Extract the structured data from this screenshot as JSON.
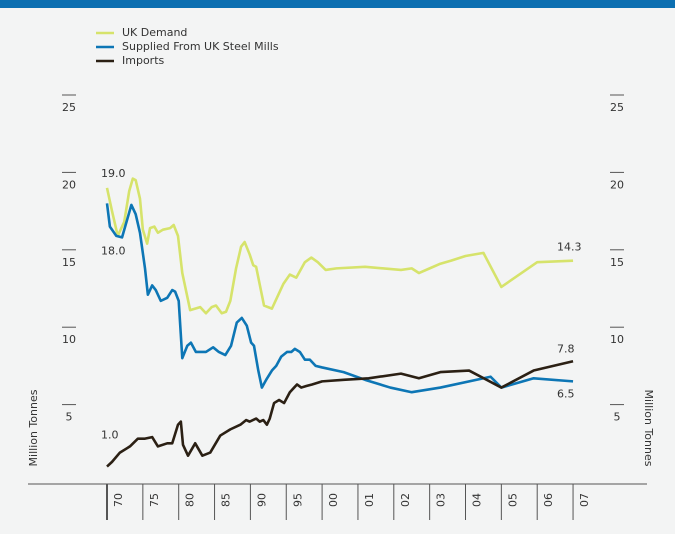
{
  "chart_data": {
    "type": "line",
    "y_label": "Million Tonnes",
    "xlim": [
      1970,
      2007
    ],
    "xticks": [
      {
        "value": 1970,
        "label": "70"
      },
      {
        "value": 1975,
        "label": "75"
      },
      {
        "value": 1980,
        "label": "80"
      },
      {
        "value": 1985,
        "label": "85"
      },
      {
        "value": 1990,
        "label": "90"
      },
      {
        "value": 1995,
        "label": "95"
      },
      {
        "value": 2000,
        "label": "00"
      },
      {
        "value": 2001,
        "label": "01"
      },
      {
        "value": 2002,
        "label": "02"
      },
      {
        "value": 2003,
        "label": "03"
      },
      {
        "value": 2004,
        "label": "04"
      },
      {
        "value": 2005,
        "label": "05"
      },
      {
        "value": 2006,
        "label": "06"
      },
      {
        "value": 2007,
        "label": "07"
      }
    ],
    "ylim": [
      0,
      25
    ],
    "yticks": [
      5,
      10,
      15,
      20,
      25
    ],
    "legend": "top-left",
    "series": [
      {
        "name": "UK Demand",
        "color": "#d6e36b",
        "x": [
          1970,
          1970.7,
          1971.5,
          1972.4,
          1973.1,
          1973.6,
          1974,
          1974.6,
          1975,
          1975.6,
          1976,
          1976.6,
          1977.1,
          1977.8,
          1978.8,
          1979.3,
          1979.9,
          1980.5,
          1981.6,
          1983,
          1983.8,
          1984.6,
          1985.2,
          1986,
          1986.6,
          1987.2,
          1988,
          1988.7,
          1989.2,
          1989.9,
          1990.4,
          1990.8,
          1991.9,
          1993,
          1993.9,
          1994.6,
          1995.5,
          1996.4,
          1997.6,
          1998.5,
          1999.4,
          2000.1,
          2000.4,
          2001.2,
          2002.2,
          2002.5,
          2002.7,
          2003,
          2003.3,
          2003.6,
          2004,
          2004.5,
          2005,
          2006,
          2007
        ],
        "values": [
          19.0,
          17.5,
          15.9,
          16.8,
          18.8,
          19.6,
          19.5,
          18.3,
          16.3,
          15.4,
          16.4,
          16.5,
          16.1,
          16.3,
          16.4,
          16.6,
          15.9,
          13.5,
          11.1,
          11.3,
          10.9,
          11.3,
          11.4,
          10.9,
          11.0,
          11.7,
          13.8,
          15.2,
          15.5,
          14.7,
          14.0,
          13.9,
          11.4,
          11.2,
          12.1,
          12.8,
          13.4,
          13.2,
          14.2,
          14.5,
          14.2,
          13.7,
          13.8,
          13.9,
          13.7,
          13.8,
          13.5,
          13.8,
          14.1,
          14.3,
          14.6,
          14.8,
          12.6,
          14.2,
          14.3
        ],
        "value_labels": [
          "19.0",
          null,
          null,
          null,
          null,
          null,
          null,
          null,
          null,
          null,
          null,
          null,
          null,
          null,
          null,
          null,
          null,
          null,
          null,
          null,
          null,
          null,
          null,
          null,
          null,
          null,
          null,
          null,
          null,
          null,
          null,
          null,
          null,
          null,
          null,
          null,
          null,
          null,
          null,
          null,
          null,
          null,
          null,
          null,
          null,
          null,
          null,
          null,
          null,
          null,
          null,
          null,
          null,
          null,
          "14.3"
        ]
      },
      {
        "name": "Supplied From UK Steel Mills",
        "color": "#0d76b5",
        "x": [
          1970,
          1970.4,
          1971.3,
          1972.1,
          1973.4,
          1974,
          1974.6,
          1975.3,
          1975.7,
          1976.3,
          1976.8,
          1977.5,
          1978.4,
          1979.1,
          1979.5,
          1980,
          1980.5,
          1981.2,
          1981.7,
          1982.4,
          1983.8,
          1984.8,
          1985.6,
          1986.5,
          1987.3,
          1988.1,
          1988.8,
          1989.5,
          1990.1,
          1990.5,
          1991.1,
          1991.6,
          1992.2,
          1993,
          1993.6,
          1994.3,
          1995.1,
          1995.7,
          1996.2,
          1996.9,
          1997.6,
          1998.3,
          1999.1,
          2000,
          2000.6,
          2001.2,
          2001.9,
          2002.5,
          2003.3,
          2004.7,
          2005,
          2005.9,
          2007
        ],
        "values": [
          18.0,
          16.5,
          15.9,
          15.8,
          17.9,
          17.3,
          16.1,
          13.8,
          12.1,
          12.7,
          12.4,
          11.7,
          11.9,
          12.4,
          12.3,
          11.7,
          8.0,
          8.8,
          9.0,
          8.4,
          8.4,
          8.7,
          8.4,
          8.2,
          8.8,
          10.3,
          10.6,
          10.1,
          9.0,
          8.8,
          7.2,
          6.1,
          6.6,
          7.2,
          7.5,
          8.1,
          8.4,
          8.4,
          8.6,
          8.4,
          7.9,
          7.9,
          7.5,
          7.4,
          7.1,
          6.6,
          6.1,
          5.8,
          6.1,
          6.8,
          6.1,
          6.7,
          6.5
        ],
        "value_labels": [
          "18.0",
          null,
          null,
          null,
          null,
          null,
          null,
          null,
          null,
          null,
          null,
          null,
          null,
          null,
          null,
          null,
          null,
          null,
          null,
          null,
          null,
          null,
          null,
          null,
          null,
          null,
          null,
          null,
          null,
          null,
          null,
          null,
          null,
          null,
          null,
          null,
          null,
          null,
          null,
          null,
          null,
          null,
          null,
          null,
          null,
          null,
          null,
          null,
          null,
          null,
          null,
          null,
          "6.5"
        ]
      },
      {
        "name": "Imports",
        "color": "#2b2014",
        "x": [
          1970,
          1970.7,
          1971.8,
          1973.2,
          1974.3,
          1975.3,
          1976.3,
          1977.1,
          1978.4,
          1979.1,
          1979.9,
          1980.3,
          1980.6,
          1981.3,
          1982.3,
          1983.3,
          1984.4,
          1985.8,
          1987.2,
          1988.6,
          1989.4,
          1989.9,
          1990.8,
          1991.3,
          1991.8,
          1992.3,
          1992.7,
          1993.3,
          1994,
          1994.7,
          1995.5,
          1996.1,
          1996.5,
          1997.1,
          1997.8,
          1998.6,
          2000,
          2000.6,
          2001.3,
          2002.2,
          2002.7,
          2003.3,
          2004.1,
          2005,
          2005.9,
          2007
        ],
        "values": [
          1.0,
          1.3,
          1.9,
          2.3,
          2.8,
          2.8,
          2.9,
          2.3,
          2.5,
          2.5,
          3.7,
          3.9,
          2.4,
          1.7,
          2.5,
          1.7,
          1.9,
          3.0,
          3.4,
          3.7,
          4.0,
          3.9,
          4.1,
          3.9,
          4.0,
          3.7,
          4.1,
          5.1,
          5.3,
          5.1,
          5.8,
          6.1,
          6.3,
          6.1,
          6.2,
          6.3,
          6.5,
          6.6,
          6.7,
          7.0,
          6.7,
          7.1,
          7.2,
          6.1,
          7.2,
          7.8
        ],
        "value_labels": [
          "1.0",
          null,
          null,
          null,
          null,
          null,
          null,
          null,
          null,
          null,
          null,
          null,
          null,
          null,
          null,
          null,
          null,
          null,
          null,
          null,
          null,
          null,
          null,
          null,
          null,
          null,
          null,
          null,
          null,
          null,
          null,
          null,
          null,
          null,
          null,
          null,
          null,
          null,
          null,
          null,
          null,
          null,
          null,
          null,
          null,
          "7.8"
        ]
      }
    ]
  }
}
